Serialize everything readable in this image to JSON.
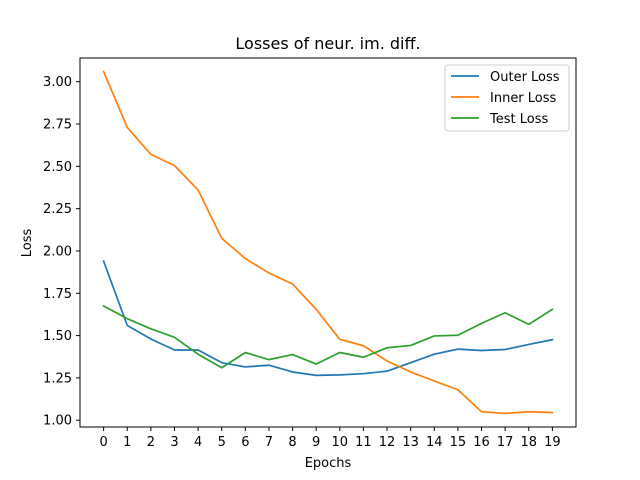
{
  "chart_data": {
    "type": "line",
    "title": "Losses of neur. im. diff.",
    "xlabel": "Epochs",
    "ylabel": "Loss",
    "x": [
      0,
      1,
      2,
      3,
      4,
      5,
      6,
      7,
      8,
      9,
      10,
      11,
      12,
      13,
      14,
      15,
      16,
      17,
      18,
      19
    ],
    "xlim": [
      -1,
      20
    ],
    "ylim": [
      0.96,
      3.14
    ],
    "yticks": [
      1.0,
      1.25,
      1.5,
      1.75,
      2.0,
      2.25,
      2.5,
      2.75,
      3.0
    ],
    "ytick_labels": [
      "1.00",
      "1.25",
      "1.50",
      "1.75",
      "2.00",
      "2.25",
      "2.50",
      "2.75",
      "3.00"
    ],
    "xtick_labels": [
      "0",
      "1",
      "2",
      "3",
      "4",
      "5",
      "6",
      "7",
      "8",
      "9",
      "10",
      "11",
      "12",
      "13",
      "14",
      "15",
      "16",
      "17",
      "18",
      "19"
    ],
    "grid": false,
    "legend_position": "top-right",
    "series": [
      {
        "name": "Outer Loss",
        "color": "#1f77b4",
        "values": [
          1.94,
          1.56,
          1.48,
          1.415,
          1.415,
          1.34,
          1.315,
          1.325,
          1.285,
          1.265,
          1.268,
          1.275,
          1.29,
          1.34,
          1.39,
          1.42,
          1.412,
          1.418,
          1.448,
          1.476
        ]
      },
      {
        "name": "Inner Loss",
        "color": "#ff7f0e",
        "values": [
          3.06,
          2.73,
          2.57,
          2.505,
          2.36,
          2.075,
          1.955,
          1.87,
          1.805,
          1.655,
          1.478,
          1.44,
          1.35,
          1.285,
          1.232,
          1.18,
          1.05,
          1.04,
          1.05,
          1.045
        ]
      },
      {
        "name": "Test Loss",
        "color": "#2ca02c",
        "values": [
          1.675,
          1.6,
          1.54,
          1.49,
          1.39,
          1.31,
          1.4,
          1.358,
          1.388,
          1.332,
          1.4,
          1.372,
          1.428,
          1.442,
          1.498,
          1.502,
          1.572,
          1.635,
          1.566,
          1.655
        ]
      }
    ]
  }
}
